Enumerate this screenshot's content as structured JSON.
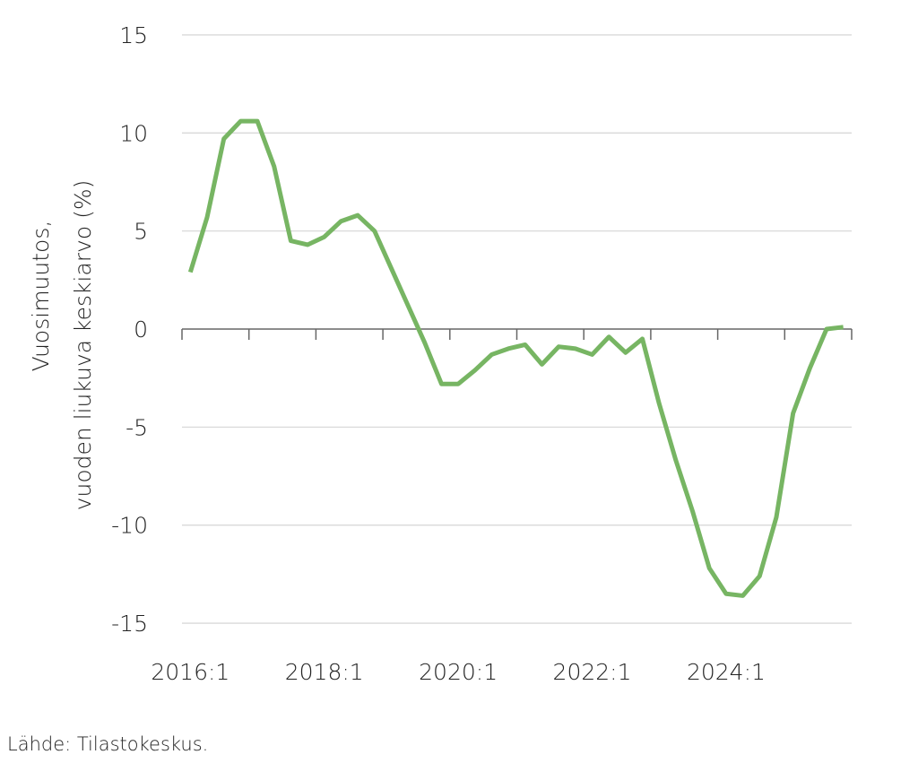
{
  "chart_data": {
    "type": "line",
    "title": "",
    "xlabel": "",
    "ylabel_lines": [
      "Vuosimuutos,",
      "vuoden liukuva keskiarvo (%)"
    ],
    "ylim": [
      -15,
      15
    ],
    "yticks": [
      15,
      10,
      5,
      0,
      -5,
      -10,
      -15
    ],
    "ytick_labels": [
      "15",
      "10",
      "5",
      "0",
      "-5",
      "-10",
      "-15"
    ],
    "xtick_labels": [
      "2016:1",
      "2018:1",
      "2020:1",
      "2022:1",
      "2024:1"
    ],
    "grid": "horizontal",
    "line_color": "#77b563",
    "x": [
      "2016:1",
      "2016:2",
      "2016:3",
      "2016:4",
      "2017:1",
      "2017:2",
      "2017:3",
      "2017:4",
      "2018:1",
      "2018:2",
      "2018:3",
      "2018:4",
      "2019:1",
      "2019:2",
      "2019:3",
      "2019:4",
      "2020:1",
      "2020:2",
      "2020:3",
      "2020:4",
      "2021:1",
      "2021:2",
      "2021:3",
      "2021:4",
      "2022:1",
      "2022:2",
      "2022:3",
      "2022:4",
      "2023:1",
      "2023:2",
      "2023:3",
      "2023:4",
      "2024:1",
      "2024:2",
      "2024:3",
      "2024:4",
      "2025:1",
      "2025:2",
      "2025:3",
      "2025:4"
    ],
    "series": [
      {
        "values": [
          2.9,
          5.7,
          9.7,
          10.6,
          10.6,
          8.3,
          4.5,
          4.3,
          4.7,
          5.5,
          5.8,
          5.0,
          3.1,
          1.2,
          -0.7,
          -2.8,
          -2.8,
          -2.1,
          -1.3,
          -1.0,
          -0.8,
          -1.8,
          -0.9,
          -1.0,
          -1.3,
          -0.4,
          -1.2,
          -0.5,
          -3.8,
          -6.7,
          -9.3,
          -12.2,
          -13.5,
          -13.6,
          -12.6,
          -9.6,
          -4.3,
          -2.0,
          0.0,
          0.1
        ]
      }
    ]
  },
  "source": "Lähde: Tilastokeskus."
}
